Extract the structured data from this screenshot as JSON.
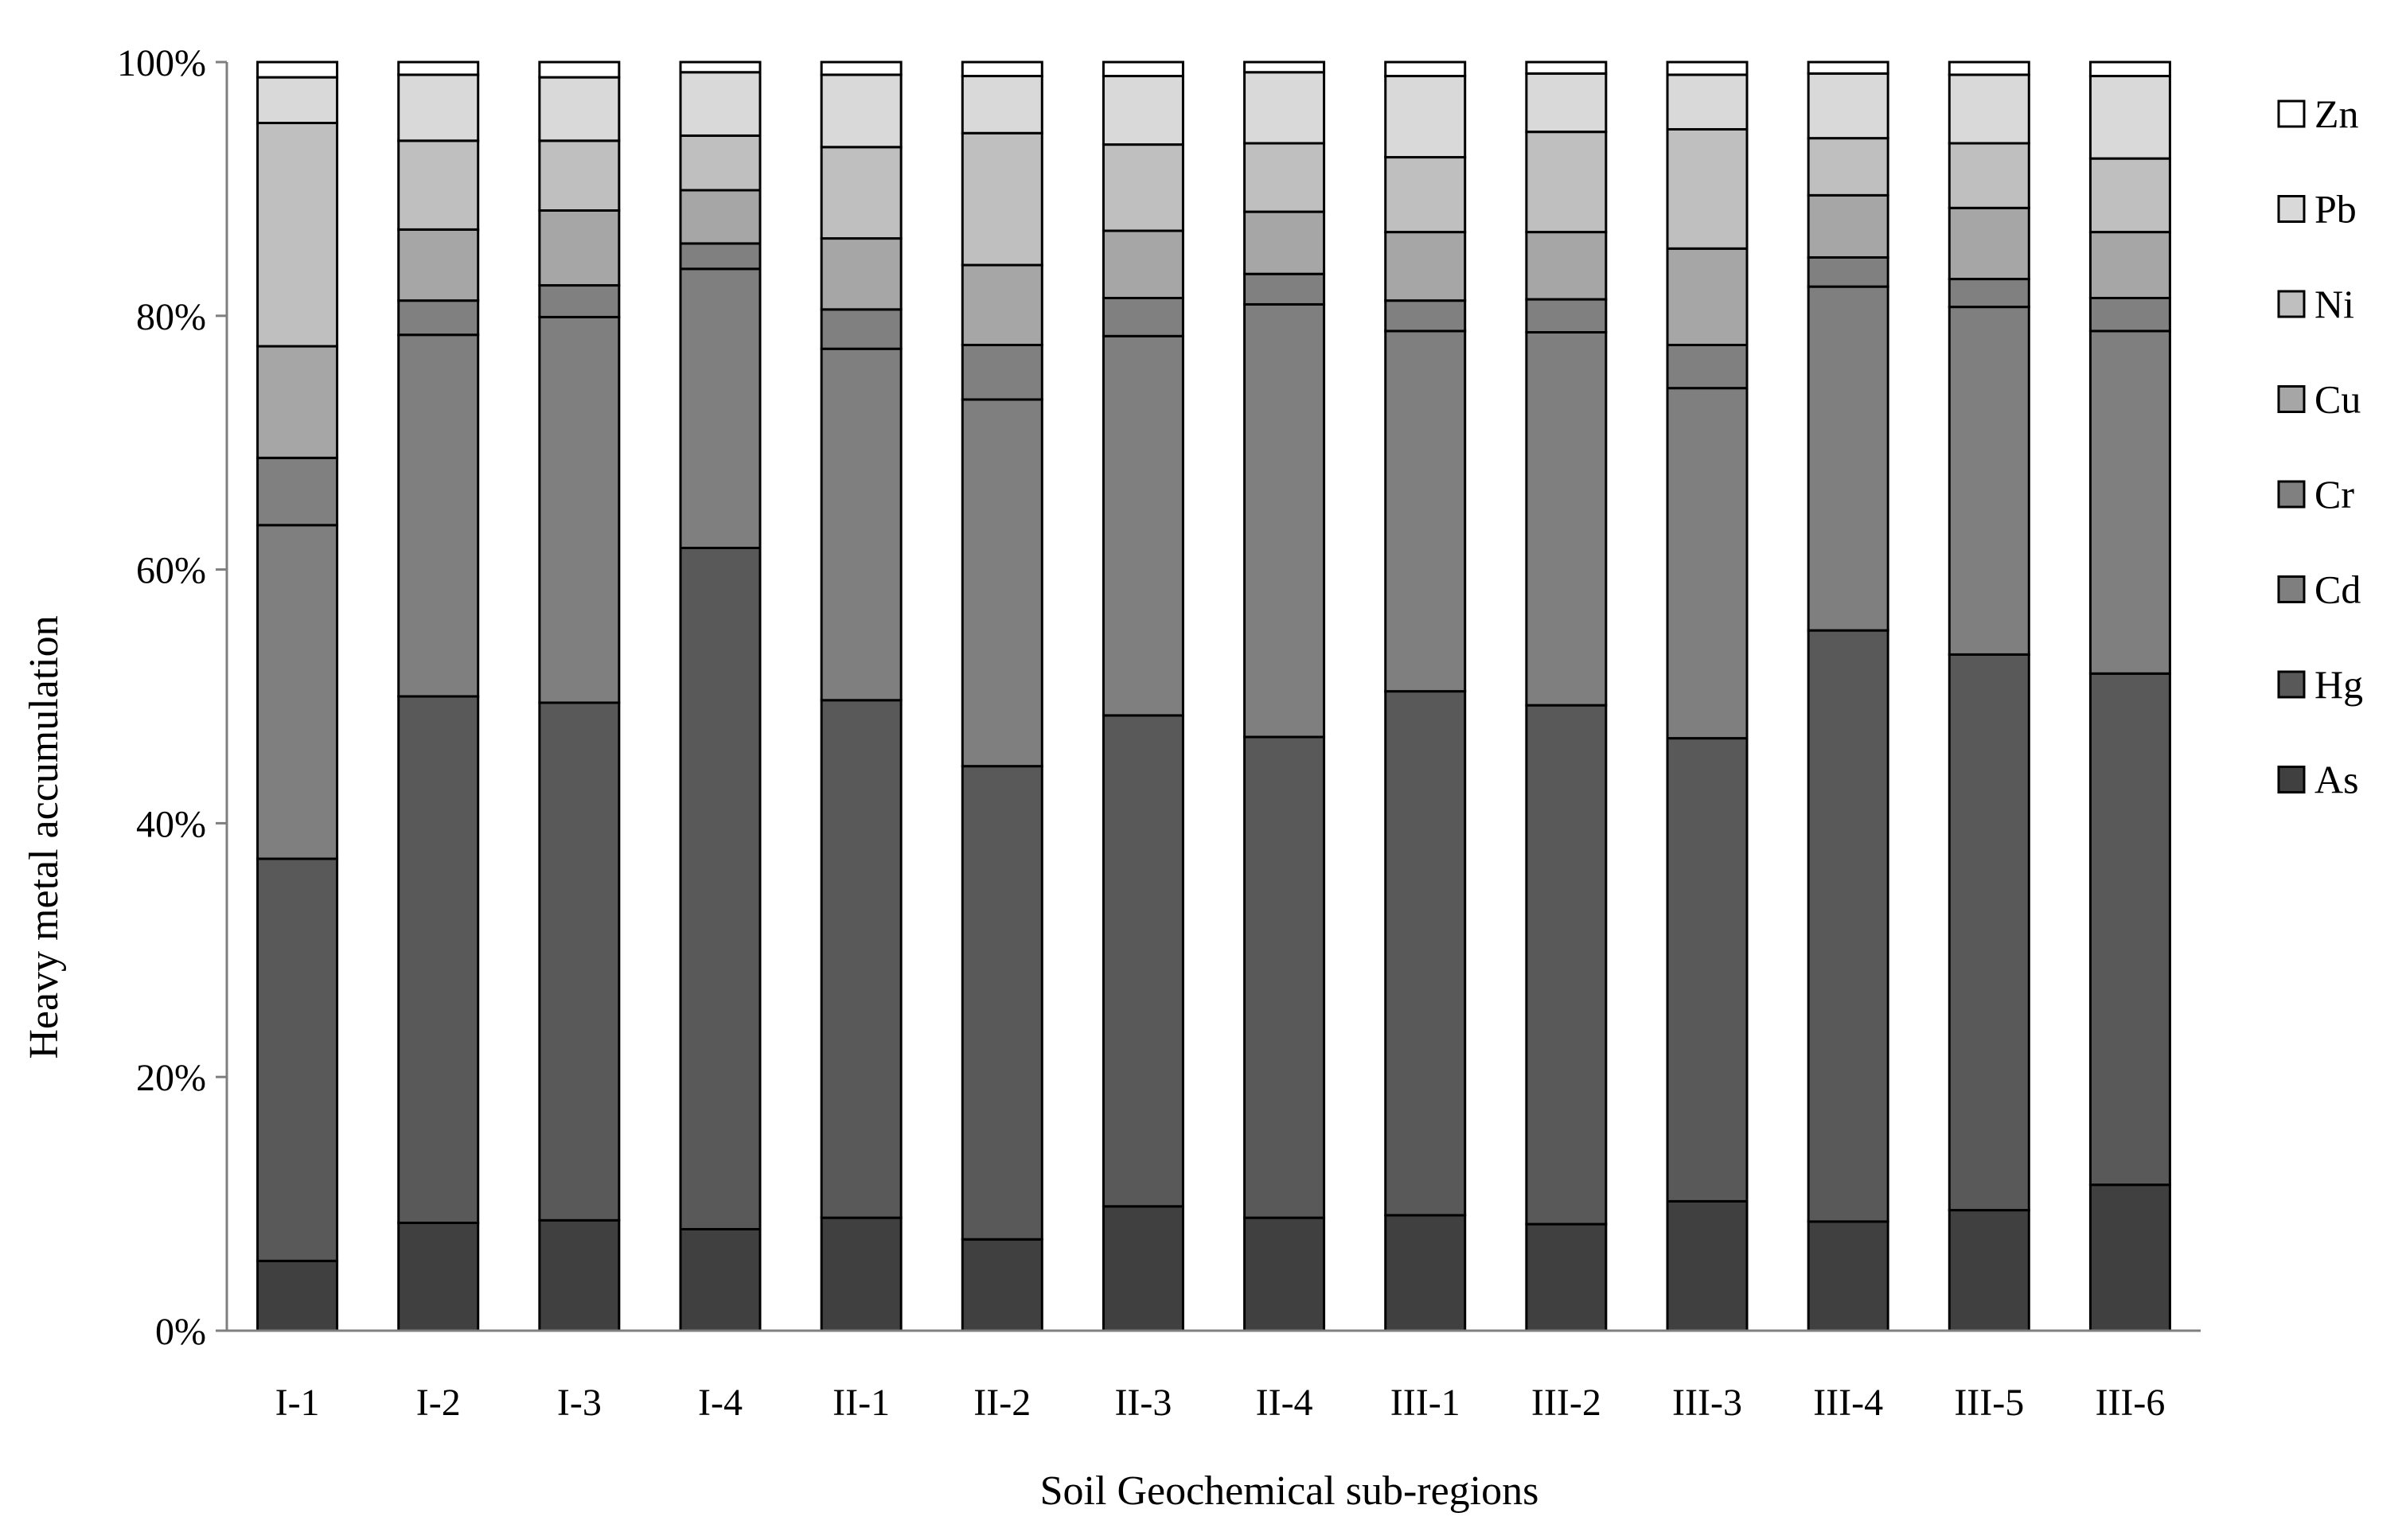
{
  "chart_data": {
    "type": "bar",
    "stacked": true,
    "normalized": true,
    "title": "",
    "xlabel": "Soil Geochemical sub-regions",
    "ylabel": "Heavy metal accumulation",
    "ylim": [
      0,
      100
    ],
    "yticks": [
      "0%",
      "20%",
      "40%",
      "60%",
      "80%",
      "100%"
    ],
    "grid": false,
    "legend_position": "right",
    "categories": [
      "I-1",
      "I-2",
      "I-3",
      "I-4",
      "II-1",
      "II-2",
      "II-3",
      "II-4",
      "III-1",
      "III-2",
      "III-3",
      "III-4",
      "III-5",
      "III-6"
    ],
    "series": [
      {
        "name": "As",
        "color": "#404040",
        "values": [
          5.5,
          8.5,
          8.7,
          8.0,
          8.9,
          7.2,
          9.8,
          8.9,
          9.1,
          8.4,
          10.2,
          8.6,
          9.5,
          11.5
        ]
      },
      {
        "name": "Hg",
        "color": "#595959",
        "values": [
          31.7,
          41.5,
          40.8,
          53.7,
          40.8,
          37.3,
          38.7,
          37.9,
          41.3,
          40.9,
          36.5,
          46.6,
          43.8,
          40.3
        ]
      },
      {
        "name": "Cd",
        "color": "#7f7f7f",
        "values": [
          26.3,
          28.5,
          30.4,
          22.0,
          27.7,
          28.9,
          29.9,
          34.1,
          28.4,
          29.4,
          27.6,
          27.1,
          27.4,
          27.0
        ]
      },
      {
        "name": "Cr",
        "color": "#808080",
        "values": [
          5.3,
          2.7,
          2.5,
          2.0,
          3.1,
          4.3,
          3.0,
          2.4,
          2.4,
          2.6,
          3.4,
          2.3,
          2.2,
          2.6
        ]
      },
      {
        "name": "Cu",
        "color": "#a6a6a6",
        "values": [
          8.8,
          5.6,
          5.9,
          4.2,
          5.6,
          6.3,
          5.3,
          4.9,
          5.4,
          5.3,
          7.6,
          4.9,
          5.6,
          5.2
        ]
      },
      {
        "name": "Ni",
        "color": "#bfbfbf",
        "values": [
          17.6,
          7.0,
          5.5,
          4.3,
          7.2,
          10.4,
          6.8,
          5.4,
          5.9,
          7.9,
          9.4,
          4.5,
          5.1,
          5.8
        ]
      },
      {
        "name": "Pb",
        "color": "#d9d9d9",
        "values": [
          3.6,
          5.2,
          5.0,
          5.0,
          5.7,
          4.5,
          5.4,
          5.6,
          6.4,
          4.6,
          4.3,
          5.1,
          5.4,
          6.5
        ]
      },
      {
        "name": "Zn",
        "color": "#ffffff",
        "values": [
          1.2,
          1.0,
          1.2,
          0.8,
          1.0,
          1.1,
          1.1,
          0.8,
          1.1,
          0.9,
          1.0,
          0.9,
          1.0,
          1.1
        ]
      }
    ]
  }
}
